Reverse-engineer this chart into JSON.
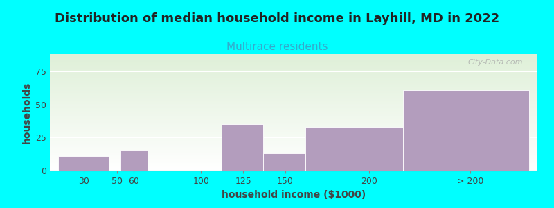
{
  "title": "Distribution of median household income in Layhill, MD in 2022",
  "subtitle": "Multirace residents",
  "xlabel": "household income ($1000)",
  "ylabel": "households",
  "background_color": "#00FFFF",
  "plot_bg_top": "#dff0d8",
  "plot_bg_bottom": "#ffffff",
  "bar_color": "#b39dbd",
  "bar_edge_color": "#ffffff",
  "categories": [
    "30",
    "50",
    "60",
    "100",
    "125",
    "150",
    "200",
    "> 200"
  ],
  "values": [
    11,
    0,
    15,
    0,
    35,
    13,
    33,
    61
  ],
  "bar_left": [
    15,
    45,
    52,
    95,
    112,
    137,
    162,
    220
  ],
  "bar_right": [
    45,
    50,
    68,
    112,
    137,
    162,
    220,
    295
  ],
  "ylim": [
    0,
    88
  ],
  "yticks": [
    0,
    25,
    50,
    75
  ],
  "xtick_positions": [
    30,
    50,
    60,
    100,
    125,
    150,
    200,
    260
  ],
  "xlim": [
    10,
    300
  ],
  "title_fontsize": 13,
  "subtitle_fontsize": 11,
  "subtitle_color": "#33aacc",
  "axis_label_fontsize": 10,
  "tick_fontsize": 9,
  "watermark": "City-Data.com"
}
